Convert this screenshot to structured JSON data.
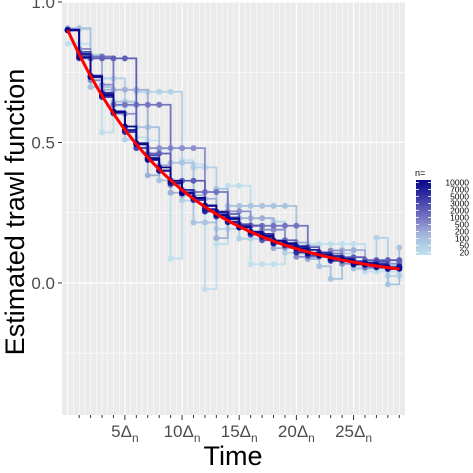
{
  "chart_data": {
    "type": "line",
    "title": "",
    "xlabel": "Time",
    "ylabel": "Estimated trawl function",
    "x_tick_labels": [
      {
        "x": 5,
        "base": "5Δ",
        "sub": "n"
      },
      {
        "x": 10,
        "base": "10Δ",
        "sub": "n"
      },
      {
        "x": 15,
        "base": "15Δ",
        "sub": "n"
      },
      {
        "x": 20,
        "base": "20Δ",
        "sub": "n"
      },
      {
        "x": 25,
        "base": "25Δ",
        "sub": "n"
      }
    ],
    "y_ticks": [
      0.0,
      0.5,
      1.0
    ],
    "y_tick_labels": [
      "0.0",
      "0.5",
      "1.0"
    ],
    "xlim": [
      -0.5,
      29.5
    ],
    "ylim": [
      -0.47,
      1.0
    ],
    "grid": true,
    "legend": {
      "title": "n=",
      "position": "right",
      "entries": [
        "10000",
        "7000",
        "5000",
        "3000",
        "2000",
        "1000",
        "500",
        "200",
        "100",
        "50",
        "20"
      ],
      "colors": [
        "#08088a",
        "#1b1b96",
        "#3030a2",
        "#4848ae",
        "#5f5fb8",
        "#7474c2",
        "#8b8fcc",
        "#9fb0d6",
        "#a9c4df",
        "#b4d2e6",
        "#c0e0ee"
      ]
    },
    "true_curve": {
      "name": "",
      "color": "#ff0000",
      "function": "exp",
      "a": 0.9,
      "b": 0.1
    }
  }
}
